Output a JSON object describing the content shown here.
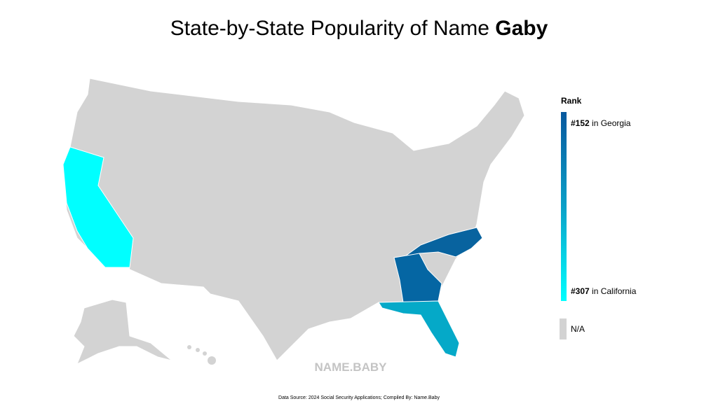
{
  "header": {
    "title": "State-by-State Popularity of Name ",
    "name": "Gaby"
  },
  "legend": {
    "title": "Rank",
    "top": {
      "rank": "#152",
      "text": " in Georgia"
    },
    "bottom": {
      "rank": "#307",
      "text": " in California"
    },
    "na": "N/A"
  },
  "watermark": "NAME.BABY",
  "footer": "Data Source: 2024 Social Security Applications; Compiled By: Name.Baby"
}
